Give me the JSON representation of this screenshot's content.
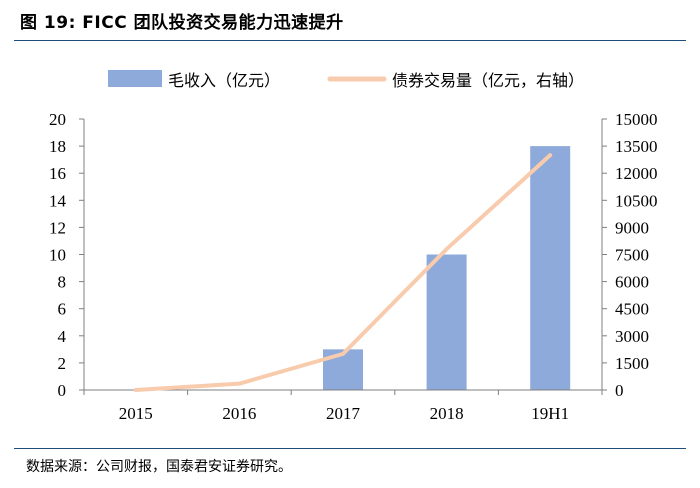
{
  "figure": {
    "title": "图 19:  FICC 团队投资交易能力迅速提升",
    "source": "数据来源：公司财报，国泰君安证券研究。"
  },
  "colors": {
    "bar": "#8eaadb",
    "line": "#f8cbad",
    "rule": "#1f4e79",
    "axis": "#7f7f7f"
  },
  "chart_data": {
    "type": "bar",
    "categories": [
      "2015",
      "2016",
      "2017",
      "2018",
      "19H1"
    ],
    "series": [
      {
        "name": "毛收入（亿元）",
        "type": "bar",
        "axis": "left",
        "values": [
          0,
          0,
          3,
          10,
          18
        ]
      },
      {
        "name": "债券交易量（亿元，右轴）",
        "type": "line",
        "axis": "right",
        "values": [
          0,
          350,
          2000,
          7800,
          13000
        ]
      }
    ],
    "y_left": {
      "min": 0,
      "max": 20,
      "ticks": [
        0,
        2,
        4,
        6,
        8,
        10,
        12,
        14,
        16,
        18,
        20
      ]
    },
    "y_right": {
      "min": 0,
      "max": 15000,
      "ticks": [
        0,
        1500,
        3000,
        4500,
        6000,
        7500,
        9000,
        10500,
        12000,
        13500,
        15000
      ]
    },
    "legend_position": "top-center"
  }
}
